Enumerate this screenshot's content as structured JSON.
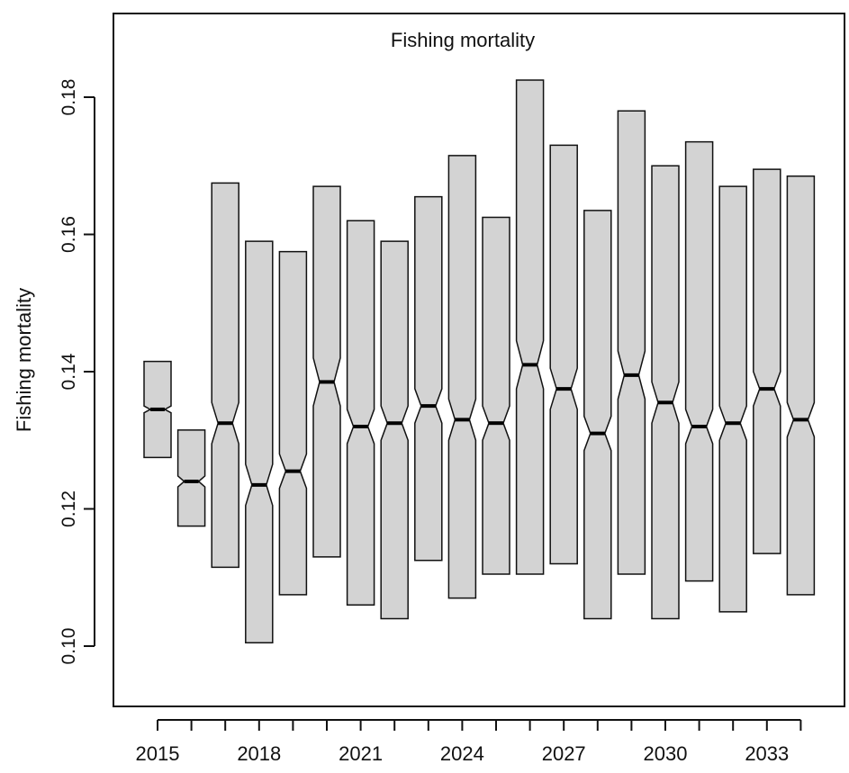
{
  "chart_data": {
    "type": "boxplot",
    "title": "Fishing mortality",
    "ylabel": "Fishing mortality",
    "xlabel": "",
    "ylim": [
      0.09,
      0.195
    ],
    "yticks": [
      0.1,
      0.12,
      0.14,
      0.16,
      0.18
    ],
    "ytick_labels": [
      "0.10",
      "0.12",
      "0.14",
      "0.16",
      "0.18"
    ],
    "xtick_labels": [
      "2015",
      "2018",
      "2021",
      "2024",
      "2027",
      "2030",
      "2033"
    ],
    "box_fill": "#d3d3d3",
    "notched": true,
    "boxes": [
      {
        "year": 2015,
        "q1": 0.1275,
        "median": 0.1345,
        "q3": 0.1415,
        "notch_low": 0.134,
        "notch_high": 0.135
      },
      {
        "year": 2016,
        "q1": 0.1175,
        "median": 0.124,
        "q3": 0.1315,
        "notch_low": 0.1232,
        "notch_high": 0.1248
      },
      {
        "year": 2017,
        "q1": 0.1115,
        "median": 0.1325,
        "q3": 0.1675,
        "notch_low": 0.1295,
        "notch_high": 0.1355
      },
      {
        "year": 2018,
        "q1": 0.1005,
        "median": 0.1235,
        "q3": 0.159,
        "notch_low": 0.1205,
        "notch_high": 0.1265
      },
      {
        "year": 2019,
        "q1": 0.1075,
        "median": 0.1255,
        "q3": 0.1575,
        "notch_low": 0.123,
        "notch_high": 0.128
      },
      {
        "year": 2020,
        "q1": 0.113,
        "median": 0.1385,
        "q3": 0.167,
        "notch_low": 0.135,
        "notch_high": 0.142
      },
      {
        "year": 2021,
        "q1": 0.106,
        "median": 0.132,
        "q3": 0.162,
        "notch_low": 0.1295,
        "notch_high": 0.1345
      },
      {
        "year": 2022,
        "q1": 0.104,
        "median": 0.1325,
        "q3": 0.159,
        "notch_low": 0.13,
        "notch_high": 0.135
      },
      {
        "year": 2023,
        "q1": 0.1125,
        "median": 0.135,
        "q3": 0.1655,
        "notch_low": 0.1325,
        "notch_high": 0.1375
      },
      {
        "year": 2024,
        "q1": 0.107,
        "median": 0.133,
        "q3": 0.1715,
        "notch_low": 0.13,
        "notch_high": 0.136
      },
      {
        "year": 2025,
        "q1": 0.1105,
        "median": 0.1325,
        "q3": 0.1625,
        "notch_low": 0.13,
        "notch_high": 0.135
      },
      {
        "year": 2026,
        "q1": 0.1105,
        "median": 0.141,
        "q3": 0.1825,
        "notch_low": 0.1375,
        "notch_high": 0.1445
      },
      {
        "year": 2027,
        "q1": 0.112,
        "median": 0.1375,
        "q3": 0.173,
        "notch_low": 0.1345,
        "notch_high": 0.1405
      },
      {
        "year": 2028,
        "q1": 0.104,
        "median": 0.131,
        "q3": 0.1635,
        "notch_low": 0.1285,
        "notch_high": 0.1335
      },
      {
        "year": 2029,
        "q1": 0.1105,
        "median": 0.1395,
        "q3": 0.178,
        "notch_low": 0.136,
        "notch_high": 0.143
      },
      {
        "year": 2030,
        "q1": 0.104,
        "median": 0.1355,
        "q3": 0.17,
        "notch_low": 0.1325,
        "notch_high": 0.1385
      },
      {
        "year": 2031,
        "q1": 0.1095,
        "median": 0.132,
        "q3": 0.1735,
        "notch_low": 0.1295,
        "notch_high": 0.1345
      },
      {
        "year": 2032,
        "q1": 0.105,
        "median": 0.1325,
        "q3": 0.167,
        "notch_low": 0.13,
        "notch_high": 0.135
      },
      {
        "year": 2033,
        "q1": 0.1135,
        "median": 0.1375,
        "q3": 0.1695,
        "notch_low": 0.135,
        "notch_high": 0.14
      },
      {
        "year": 2034,
        "q1": 0.1075,
        "median": 0.133,
        "q3": 0.1685,
        "notch_low": 0.1305,
        "notch_high": 0.1355
      }
    ]
  }
}
